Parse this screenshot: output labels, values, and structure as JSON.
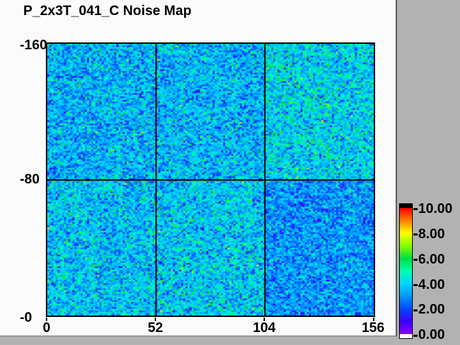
{
  "window": {
    "frame_bg": "#b2b2b2",
    "panel_bg": "#fbfbfb"
  },
  "title": "P_2x3T_041_C Noise Map",
  "chart_data": {
    "type": "heatmap",
    "title": "P_2x3T_041_C Noise Map",
    "x_range": [
      0,
      156
    ],
    "y_range": [
      -160,
      0
    ],
    "x_ticks": [
      "0",
      "52",
      "104",
      "156"
    ],
    "y_ticks": [
      "-160",
      "-80",
      "-0"
    ],
    "grid_cols": 156,
    "grid_rows": 160,
    "tile_grid": {
      "rows": 2,
      "cols": 3,
      "x_boundaries": [
        52,
        104
      ],
      "y_boundary": -80,
      "divider_color": "#000000"
    },
    "value_range": [
      0,
      10
    ],
    "seed": 7,
    "tiles": [
      {
        "name": "top-left",
        "approx_mean": 3.5,
        "approx_sd": 1.05
      },
      {
        "name": "top-middle",
        "approx_mean": 3.55,
        "approx_sd": 1.05
      },
      {
        "name": "top-right",
        "approx_mean": 4.0,
        "approx_sd": 1.1
      },
      {
        "name": "bottom-left",
        "approx_mean": 3.7,
        "approx_sd": 1.05
      },
      {
        "name": "bottom-middle",
        "approx_mean": 3.8,
        "approx_sd": 1.1
      },
      {
        "name": "bottom-right",
        "approx_mean": 3.05,
        "approx_sd": 0.95
      }
    ],
    "colormap": {
      "stops": [
        [
          0,
          "#8800ff"
        ],
        [
          1,
          "#3c00ff"
        ],
        [
          2,
          "#0048ff"
        ],
        [
          3,
          "#0096ff"
        ],
        [
          4,
          "#00d4ff"
        ],
        [
          5,
          "#00ffaa"
        ],
        [
          6,
          "#00dd44"
        ],
        [
          7,
          "#80ff00"
        ],
        [
          8,
          "#ffff00"
        ],
        [
          9,
          "#ff8000"
        ],
        [
          10,
          "#ff0000"
        ]
      ]
    },
    "colorbar": {
      "tick_labels": [
        "10.00",
        "8.00",
        "6.00",
        "4.00",
        "2.00",
        "0.00"
      ],
      "over_color": "#000000",
      "under_color": "#ffffff",
      "position": "right"
    },
    "legend": "none",
    "grid": "tile boundaries only"
  }
}
